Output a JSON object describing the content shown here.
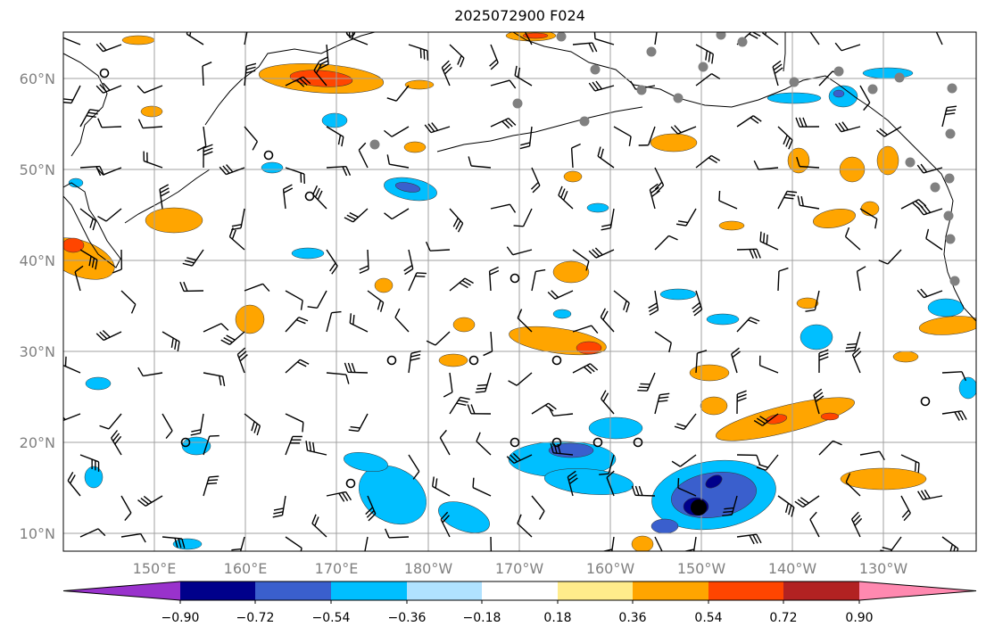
{
  "title": "2025072900 F024",
  "map": {
    "lat_labels": [
      "60°N",
      "50°N",
      "40°N",
      "30°N",
      "20°N",
      "10°N"
    ],
    "lon_labels": [
      "150°E",
      "160°E",
      "170°E",
      "180°W",
      "170°W",
      "160°W",
      "150°W",
      "140°W",
      "130°W"
    ],
    "grid": true,
    "gridline_color": "#a0a0a0",
    "land_outline_color": "#000000",
    "wind_barb_color": "#000000",
    "station_marker_color": "#808080"
  },
  "colorbar": {
    "ticks": [
      "−0.90",
      "−0.72",
      "−0.54",
      "−0.36",
      "−0.18",
      "0.18",
      "0.36",
      "0.54",
      "0.72",
      "0.90"
    ],
    "colors": [
      "#9932cc",
      "#00008b",
      "#3a5fcd",
      "#00bfff",
      "#b0e2ff",
      "#ffffff",
      "#ffec8b",
      "#ffa500",
      "#ff4500",
      "#b22222",
      "#ff89b0"
    ],
    "extend": "both"
  },
  "field_colors": {
    "positive_weak": "#ffec8b",
    "positive": "#ffa500",
    "positive_strong": "#ff4500",
    "negative_weak": "#b0e2ff",
    "negative": "#00bfff",
    "negative_mid": "#3a5fcd",
    "negative_strong": "#00008b"
  }
}
